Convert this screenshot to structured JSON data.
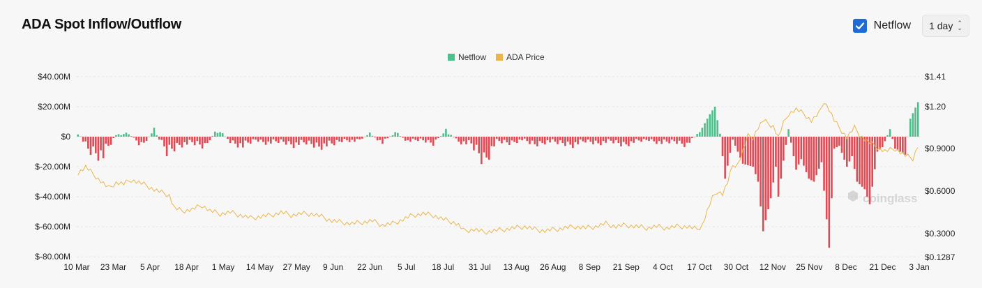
{
  "header": {
    "title": "ADA Spot Inflow/Outflow",
    "netflow_checkbox_label": "Netflow",
    "netflow_checked": true,
    "interval_select_value": "1 day"
  },
  "watermark": "coinglass",
  "colors": {
    "positive": "#4dbf8b",
    "negative": "#e04a55",
    "price": "#eab64a",
    "checkbox": "#1e6bd6"
  },
  "chart_data": {
    "type": "bar",
    "title": "ADA Spot Inflow/Outflow",
    "legend_position": "top-center",
    "series": [
      {
        "name": "Netflow",
        "type": "bar",
        "axis": "left"
      },
      {
        "name": "ADA Price",
        "type": "line",
        "axis": "right"
      }
    ],
    "x_ticks": [
      "10 Mar",
      "23 Mar",
      "5 Apr",
      "18 Apr",
      "1 May",
      "14 May",
      "27 May",
      "9 Jun",
      "22 Jun",
      "5 Jul",
      "18 Jul",
      "31 Jul",
      "13 Aug",
      "26 Aug",
      "8 Sep",
      "21 Sep",
      "4 Oct",
      "17 Oct",
      "30 Oct",
      "12 Nov",
      "25 Nov",
      "8 Dec",
      "21 Dec",
      "3 Jan"
    ],
    "y_left_ticks": [
      "$40.00M",
      "$20.00M",
      "$0",
      "$-20.00M",
      "$-40.00M",
      "$-60.00M",
      "$-80.00M"
    ],
    "y_left_range": [
      -80,
      40
    ],
    "y_right_ticks": [
      "$1.41",
      "$1.20",
      "$0.9000",
      "$0.6000",
      "$0.3000",
      "$0.1287"
    ],
    "y_right_range": [
      0.1287,
      1.41
    ],
    "netflow_keypoints_musd": [
      [
        0,
        3
      ],
      [
        4,
        -8
      ],
      [
        10,
        -12
      ],
      [
        15,
        1
      ],
      [
        20,
        2
      ],
      [
        25,
        -6
      ],
      [
        30,
        4
      ],
      [
        35,
        -10
      ],
      [
        40,
        -5
      ],
      [
        45,
        -4
      ],
      [
        50,
        -6
      ],
      [
        55,
        5
      ],
      [
        60,
        -3
      ],
      [
        65,
        -6
      ],
      [
        70,
        -2
      ],
      [
        75,
        -4
      ],
      [
        80,
        -3
      ],
      [
        85,
        -5
      ],
      [
        90,
        -4
      ],
      [
        95,
        -6
      ],
      [
        100,
        -5
      ],
      [
        105,
        -2
      ],
      [
        110,
        -3
      ],
      [
        115,
        2
      ],
      [
        120,
        -4
      ],
      [
        125,
        3
      ],
      [
        130,
        -3
      ],
      [
        135,
        -2
      ],
      [
        140,
        -4
      ],
      [
        145,
        4
      ],
      [
        150,
        -3
      ],
      [
        155,
        -5
      ],
      [
        160,
        -15
      ],
      [
        165,
        -3
      ],
      [
        170,
        -4
      ],
      [
        175,
        -2
      ],
      [
        180,
        -5
      ],
      [
        185,
        -3
      ],
      [
        190,
        -4
      ],
      [
        195,
        -5
      ],
      [
        200,
        -3
      ],
      [
        205,
        -4
      ],
      [
        210,
        -3
      ],
      [
        215,
        -5
      ],
      [
        220,
        -3
      ],
      [
        225,
        -2
      ],
      [
        230,
        -4
      ],
      [
        235,
        -3
      ],
      [
        240,
        -5
      ],
      [
        245,
        3
      ],
      [
        249,
        15
      ],
      [
        251,
        20
      ],
      [
        253,
        2
      ],
      [
        255,
        -28
      ],
      [
        258,
        -2
      ],
      [
        262,
        -18
      ],
      [
        266,
        -20
      ],
      [
        268,
        -30
      ],
      [
        270,
        -63
      ],
      [
        273,
        -41
      ],
      [
        275,
        -20
      ],
      [
        276,
        -40
      ],
      [
        278,
        -16
      ],
      [
        280,
        5
      ],
      [
        283,
        -22
      ],
      [
        285,
        -15
      ],
      [
        288,
        -28
      ],
      [
        290,
        -30
      ],
      [
        293,
        -17
      ],
      [
        296,
        -74
      ],
      [
        298,
        -8
      ],
      [
        300,
        -6
      ],
      [
        303,
        -20
      ],
      [
        305,
        -13
      ],
      [
        307,
        -30
      ],
      [
        310,
        -35
      ],
      [
        312,
        -45
      ],
      [
        315,
        -10
      ],
      [
        317,
        -7
      ],
      [
        320,
        5
      ],
      [
        322,
        -8
      ],
      [
        324,
        -10
      ],
      [
        326,
        -12
      ],
      [
        328,
        12
      ],
      [
        331,
        23
      ]
    ],
    "price_keypoints_usd": [
      [
        0,
        0.73
      ],
      [
        3,
        0.77
      ],
      [
        6,
        0.72
      ],
      [
        9,
        0.67
      ],
      [
        12,
        0.62
      ],
      [
        15,
        0.66
      ],
      [
        18,
        0.65
      ],
      [
        21,
        0.68
      ],
      [
        24,
        0.66
      ],
      [
        27,
        0.64
      ],
      [
        30,
        0.61
      ],
      [
        33,
        0.59
      ],
      [
        36,
        0.57
      ],
      [
        38,
        0.48
      ],
      [
        41,
        0.46
      ],
      [
        45,
        0.47
      ],
      [
        49,
        0.5
      ],
      [
        52,
        0.46
      ],
      [
        56,
        0.44
      ],
      [
        60,
        0.45
      ],
      [
        64,
        0.43
      ],
      [
        68,
        0.41
      ],
      [
        72,
        0.42
      ],
      [
        76,
        0.43
      ],
      [
        80,
        0.45
      ],
      [
        84,
        0.43
      ],
      [
        88,
        0.44
      ],
      [
        92,
        0.44
      ],
      [
        96,
        0.42
      ],
      [
        100,
        0.39
      ],
      [
        104,
        0.38
      ],
      [
        108,
        0.37
      ],
      [
        112,
        0.38
      ],
      [
        116,
        0.39
      ],
      [
        120,
        0.36
      ],
      [
        124,
        0.37
      ],
      [
        128,
        0.4
      ],
      [
        132,
        0.43
      ],
      [
        136,
        0.44
      ],
      [
        140,
        0.43
      ],
      [
        144,
        0.4
      ],
      [
        148,
        0.38
      ],
      [
        150,
        0.36
      ],
      [
        152,
        0.32
      ],
      [
        156,
        0.33
      ],
      [
        160,
        0.31
      ],
      [
        164,
        0.32
      ],
      [
        168,
        0.33
      ],
      [
        172,
        0.34
      ],
      [
        176,
        0.35
      ],
      [
        180,
        0.33
      ],
      [
        184,
        0.32
      ],
      [
        188,
        0.33
      ],
      [
        192,
        0.34
      ],
      [
        196,
        0.35
      ],
      [
        200,
        0.34
      ],
      [
        204,
        0.35
      ],
      [
        208,
        0.37
      ],
      [
        212,
        0.35
      ],
      [
        216,
        0.36
      ],
      [
        220,
        0.35
      ],
      [
        224,
        0.34
      ],
      [
        228,
        0.35
      ],
      [
        232,
        0.34
      ],
      [
        236,
        0.35
      ],
      [
        240,
        0.35
      ],
      [
        244,
        0.33
      ],
      [
        246,
        0.36
      ],
      [
        248,
        0.46
      ],
      [
        250,
        0.55
      ],
      [
        252,
        0.6
      ],
      [
        254,
        0.58
      ],
      [
        256,
        0.66
      ],
      [
        258,
        0.78
      ],
      [
        260,
        0.79
      ],
      [
        262,
        0.88
      ],
      [
        264,
        0.99
      ],
      [
        266,
        0.98
      ],
      [
        268,
        1.05
      ],
      [
        270,
        1.1
      ],
      [
        272,
        1.08
      ],
      [
        274,
        1.06
      ],
      [
        276,
        0.98
      ],
      [
        278,
        1.08
      ],
      [
        280,
        1.15
      ],
      [
        283,
        1.18
      ],
      [
        286,
        1.15
      ],
      [
        289,
        1.1
      ],
      [
        292,
        1.15
      ],
      [
        294,
        1.24
      ],
      [
        296,
        1.18
      ],
      [
        298,
        1.1
      ],
      [
        300,
        1.05
      ],
      [
        303,
        0.98
      ],
      [
        306,
        1.05
      ],
      [
        308,
        1.0
      ],
      [
        311,
        0.95
      ],
      [
        314,
        0.92
      ],
      [
        318,
        0.88
      ],
      [
        322,
        0.9
      ],
      [
        326,
        0.85
      ],
      [
        329,
        0.83
      ],
      [
        331,
        0.92
      ]
    ]
  }
}
